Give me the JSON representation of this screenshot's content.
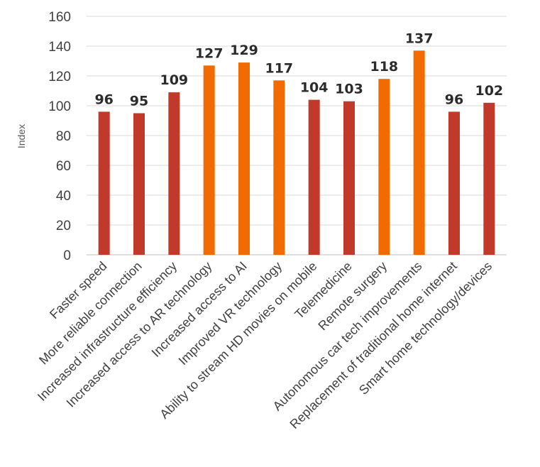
{
  "chart_data": {
    "type": "bar",
    "title": "",
    "xlabel": "",
    "ylabel": "Index",
    "ylim": [
      0,
      160
    ],
    "yticks": [
      0,
      20,
      40,
      60,
      80,
      100,
      120,
      140,
      160
    ],
    "grid": true,
    "categories": [
      "Faster speed",
      "More reliable connection",
      "Increased infrastructure efficiency",
      "Increased access to AR technology",
      "Increased access to AI",
      "Improved VR technology",
      "Ability to stream HD movies on mobile",
      "Telemedicine",
      "Remote surgery",
      "Autonomous car tech improvements",
      "Replacement of traditional home internet",
      "Smart home technology/devices"
    ],
    "values": [
      96,
      95,
      109,
      127,
      129,
      117,
      104,
      103,
      118,
      137,
      96,
      102
    ],
    "highlight": [
      false,
      false,
      false,
      true,
      true,
      true,
      false,
      false,
      true,
      true,
      false,
      false
    ],
    "colors": {
      "default": "#c0392b",
      "highlight": "#f26b00",
      "grid": "#d9d9d9",
      "label": "#2b2b2b"
    }
  }
}
